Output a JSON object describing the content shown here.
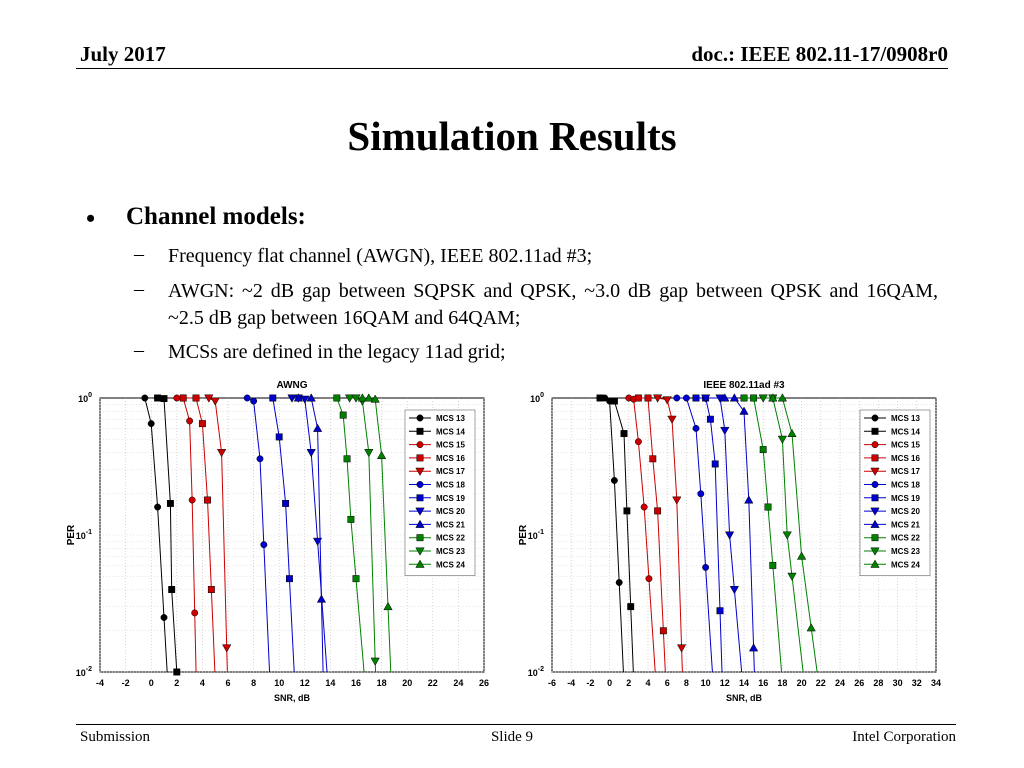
{
  "header": {
    "date": "July 2017",
    "doc": "doc.: IEEE 802.11-17/0908r0"
  },
  "title": "Simulation Results",
  "bullet": {
    "marker": "•",
    "heading": "Channel models:"
  },
  "subitems": [
    {
      "dash": "–",
      "text": "Frequency flat channel (AWGN), IEEE 802.11ad #3;"
    },
    {
      "dash": "–",
      "text": "AWGN: ~2 dB gap between SQPSK and QPSK, ~3.0 dB gap between QPSK and 16QAM, ~2.5 dB gap between 16QAM and 64QAM;"
    },
    {
      "dash": "–",
      "text": "MCSs are defined in the legacy 11ad grid;"
    }
  ],
  "footer": {
    "left": "Submission",
    "center": "Slide 9",
    "right": "Intel Corporation"
  },
  "chart_data": [
    {
      "type": "line",
      "title": "AWNG",
      "xlabel": "SNR, dB",
      "ylabel": "PER",
      "y_scale": "log",
      "xlim": [
        -4,
        26
      ],
      "ylim": [
        0.01,
        1
      ],
      "x_ticks": [
        "-4",
        "-2",
        "0",
        "2",
        "4",
        "6",
        "8",
        "10",
        "12",
        "14",
        "16",
        "18",
        "20",
        "22",
        "24",
        "26"
      ],
      "y_ticks": [
        {
          "base": "10",
          "exp": "0",
          "value": 1
        },
        {
          "base": "10",
          "exp": "-1",
          "value": 0.1
        },
        {
          "base": "10",
          "exp": "-2",
          "value": 0.01
        }
      ],
      "grid": true,
      "legend": "top-right",
      "series": [
        {
          "name": "MCS 13",
          "color": "#000000",
          "marker": "circle",
          "x": [
            -0.5,
            0,
            0.5,
            1
          ],
          "y": [
            1,
            0.65,
            0.16,
            0.025
          ]
        },
        {
          "name": "MCS 14",
          "color": "#000000",
          "marker": "square",
          "x": [
            0.5,
            1,
            1.5,
            1.6,
            2
          ],
          "y": [
            1,
            0.99,
            0.17,
            0.04,
            0.01
          ]
        },
        {
          "name": "MCS 15",
          "color": "#cc0000",
          "marker": "circle",
          "x": [
            2,
            2.5,
            3,
            3.2,
            3.4
          ],
          "y": [
            1,
            1,
            0.68,
            0.18,
            0.027
          ]
        },
        {
          "name": "MCS 16",
          "color": "#cc0000",
          "marker": "square",
          "x": [
            2.5,
            3.5,
            4,
            4.4,
            4.7
          ],
          "y": [
            1,
            1,
            0.65,
            0.18,
            0.04
          ]
        },
        {
          "name": "MCS 17",
          "color": "#cc0000",
          "marker": "triangle-down",
          "x": [
            4.5,
            5,
            5.5,
            5.9
          ],
          "y": [
            1,
            0.95,
            0.4,
            0.015
          ]
        },
        {
          "name": "MCS 18",
          "color": "#0000cc",
          "marker": "circle",
          "x": [
            7.5,
            8,
            8.5,
            8.8
          ],
          "y": [
            1,
            0.95,
            0.36,
            0.085
          ]
        },
        {
          "name": "MCS 19",
          "color": "#0000cc",
          "marker": "square",
          "x": [
            9.5,
            10,
            10.5,
            10.8
          ],
          "y": [
            1,
            0.52,
            0.17,
            0.048
          ]
        },
        {
          "name": "MCS 20",
          "color": "#0000cc",
          "marker": "triangle-down",
          "x": [
            11,
            11.5,
            12,
            12.5,
            13
          ],
          "y": [
            1,
            1,
            0.98,
            0.4,
            0.09
          ]
        },
        {
          "name": "MCS 21",
          "color": "#0000cc",
          "marker": "triangle-up",
          "x": [
            11.5,
            12.5,
            13,
            13.3
          ],
          "y": [
            1,
            1,
            0.6,
            0.034
          ]
        },
        {
          "name": "MCS 22",
          "color": "#008000",
          "marker": "square",
          "x": [
            14.5,
            15,
            15.3,
            15.6,
            16
          ],
          "y": [
            1,
            0.75,
            0.36,
            0.13,
            0.048
          ]
        },
        {
          "name": "MCS 23",
          "color": "#008000",
          "marker": "triangle-down",
          "x": [
            15.5,
            16,
            16.5,
            17,
            17.5
          ],
          "y": [
            1,
            1,
            0.95,
            0.4,
            0.012
          ]
        },
        {
          "name": "MCS 24",
          "color": "#008000",
          "marker": "triangle-up",
          "x": [
            16.5,
            17,
            17.5,
            18,
            18.5
          ],
          "y": [
            1,
            1,
            0.98,
            0.38,
            0.03
          ]
        }
      ]
    },
    {
      "type": "line",
      "title": "IEEE 802.11ad #3",
      "xlabel": "SNR, dB",
      "ylabel": "PER",
      "y_scale": "log",
      "xlim": [
        -6,
        34
      ],
      "ylim": [
        0.01,
        1
      ],
      "x_ticks": [
        "-6",
        "-4",
        "-2",
        "0",
        "2",
        "4",
        "6",
        "8",
        "10",
        "12",
        "14",
        "16",
        "18",
        "20",
        "22",
        "24",
        "26",
        "28",
        "30",
        "32",
        "34"
      ],
      "y_ticks": [
        {
          "base": "10",
          "exp": "0",
          "value": 1
        },
        {
          "base": "10",
          "exp": "-1",
          "value": 0.1
        },
        {
          "base": "10",
          "exp": "-2",
          "value": 0.01
        }
      ],
      "grid": true,
      "legend": "top-right",
      "series": [
        {
          "name": "MCS 13",
          "color": "#000000",
          "marker": "circle",
          "x": [
            -1,
            -0.5,
            0,
            0.5,
            1
          ],
          "y": [
            1,
            1,
            0.95,
            0.25,
            0.045
          ]
        },
        {
          "name": "MCS 14",
          "color": "#000000",
          "marker": "square",
          "x": [
            -1,
            0.5,
            1.5,
            1.8,
            2.2
          ],
          "y": [
            1,
            0.95,
            0.55,
            0.15,
            0.03
          ]
        },
        {
          "name": "MCS 15",
          "color": "#cc0000",
          "marker": "circle",
          "x": [
            2,
            2.5,
            3,
            3.6,
            4.1
          ],
          "y": [
            1,
            0.98,
            0.48,
            0.16,
            0.048
          ]
        },
        {
          "name": "MCS 16",
          "color": "#cc0000",
          "marker": "square",
          "x": [
            3,
            4,
            4.5,
            5,
            5.6
          ],
          "y": [
            1,
            1,
            0.36,
            0.15,
            0.02
          ]
        },
        {
          "name": "MCS 17",
          "color": "#cc0000",
          "marker": "triangle-down",
          "x": [
            5,
            6,
            6.5,
            7,
            7.5
          ],
          "y": [
            1,
            0.97,
            0.7,
            0.18,
            0.015
          ]
        },
        {
          "name": "MCS 18",
          "color": "#0000cc",
          "marker": "circle",
          "x": [
            7,
            8,
            9,
            9.5,
            10
          ],
          "y": [
            1,
            1,
            0.6,
            0.2,
            0.058
          ]
        },
        {
          "name": "MCS 19",
          "color": "#0000cc",
          "marker": "square",
          "x": [
            9,
            10,
            10.5,
            11,
            11.5
          ],
          "y": [
            1,
            1,
            0.7,
            0.33,
            0.028
          ]
        },
        {
          "name": "MCS 20",
          "color": "#0000cc",
          "marker": "triangle-down",
          "x": [
            10,
            11.5,
            12,
            12.5,
            13
          ],
          "y": [
            1,
            1,
            0.58,
            0.1,
            0.04
          ]
        },
        {
          "name": "MCS 21",
          "color": "#0000cc",
          "marker": "triangle-up",
          "x": [
            12,
            13,
            14,
            14.5,
            15
          ],
          "y": [
            1,
            1,
            0.8,
            0.18,
            0.015
          ]
        },
        {
          "name": "MCS 22",
          "color": "#008000",
          "marker": "square",
          "x": [
            14,
            15,
            16,
            16.5,
            17
          ],
          "y": [
            1,
            1,
            0.42,
            0.16,
            0.06
          ]
        },
        {
          "name": "MCS 23",
          "color": "#008000",
          "marker": "triangle-down",
          "x": [
            16,
            17,
            18,
            18.5,
            19
          ],
          "y": [
            1,
            1,
            0.5,
            0.1,
            0.05
          ]
        },
        {
          "name": "MCS 24",
          "color": "#008000",
          "marker": "triangle-up",
          "x": [
            17,
            18,
            19,
            20,
            21
          ],
          "y": [
            1,
            1,
            0.55,
            0.07,
            0.021
          ]
        }
      ]
    }
  ]
}
